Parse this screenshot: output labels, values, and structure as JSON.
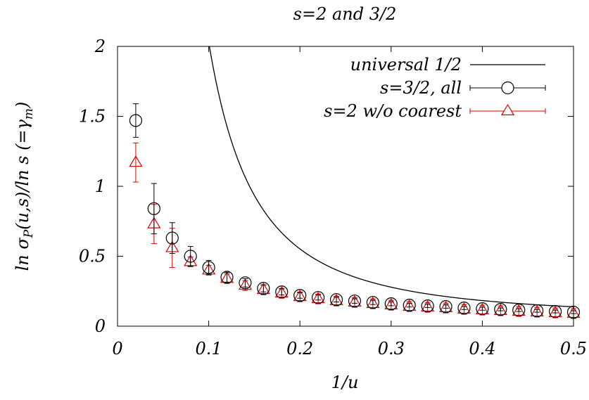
{
  "chart_data": {
    "type": "scatter",
    "title": "s=2 and 3/2",
    "xlabel": "1/u",
    "ylabel_parts": {
      "a": "ln σ",
      "sub1": "P",
      "b": "(u,s)/ln s (=γ",
      "sub2": "m",
      "c": ")"
    },
    "xlim": [
      0,
      0.5
    ],
    "ylim": [
      0,
      2
    ],
    "x_ticks": [
      0,
      0.1,
      0.2,
      0.3,
      0.4,
      0.5
    ],
    "x_tick_labels": [
      "0",
      "0.1",
      "0.2",
      "0.3",
      "0.4",
      "0.5"
    ],
    "y_ticks": [
      0,
      0.5,
      1,
      1.5,
      2
    ],
    "y_tick_labels": [
      "0",
      "0.5",
      "1",
      "1.5",
      "2"
    ],
    "legend_position": "top-right",
    "series": [
      {
        "name": "universal 1/2",
        "kind": "line",
        "color": "#000000",
        "function": "0.0197/x^2 + 0.06"
      },
      {
        "name": "s=3/2,  all",
        "kind": "points",
        "marker": "circle",
        "color": "#000000",
        "x": [
          0.02,
          0.04,
          0.06,
          0.08,
          0.1,
          0.12,
          0.14,
          0.16,
          0.18,
          0.2,
          0.22,
          0.24,
          0.26,
          0.28,
          0.3,
          0.32,
          0.34,
          0.36,
          0.38,
          0.4,
          0.42,
          0.44,
          0.46,
          0.48,
          0.5
        ],
        "y": [
          1.47,
          0.84,
          0.63,
          0.5,
          0.42,
          0.35,
          0.31,
          0.27,
          0.245,
          0.22,
          0.205,
          0.19,
          0.18,
          0.17,
          0.16,
          0.15,
          0.145,
          0.14,
          0.13,
          0.125,
          0.12,
          0.115,
          0.11,
          0.105,
          0.1
        ],
        "err": [
          0.12,
          0.18,
          0.11,
          0.07,
          0.05,
          0.035,
          0.03,
          0.025,
          0.022,
          0.02,
          0.018,
          0.017,
          0.016,
          0.015,
          0.014,
          0.013,
          0.012,
          0.012,
          0.011,
          0.011,
          0.01,
          0.01,
          0.01,
          0.01,
          0.01
        ]
      },
      {
        "name": "s=2 w/o coarest",
        "kind": "points",
        "marker": "triangle",
        "color": "#dd0000",
        "x": [
          0.02,
          0.04,
          0.06,
          0.08,
          0.1,
          0.12,
          0.14,
          0.16,
          0.18,
          0.2,
          0.22,
          0.24,
          0.26,
          0.28,
          0.3,
          0.32,
          0.34,
          0.36,
          0.38,
          0.4,
          0.42,
          0.44,
          0.46,
          0.48,
          0.5
        ],
        "y": [
          1.17,
          0.73,
          0.56,
          0.46,
          0.4,
          0.34,
          0.29,
          0.26,
          0.235,
          0.21,
          0.195,
          0.18,
          0.17,
          0.16,
          0.15,
          0.14,
          0.135,
          0.13,
          0.12,
          0.115,
          0.11,
          0.105,
          0.1,
          0.095,
          0.09
        ]
      }
    ]
  }
}
